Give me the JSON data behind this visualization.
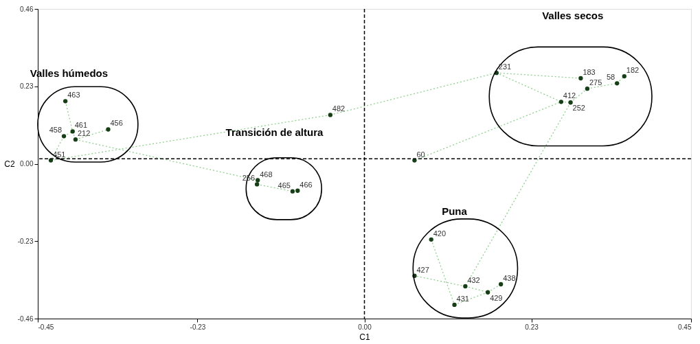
{
  "chart_data": {
    "type": "scatter",
    "xlabel": "C1",
    "ylabel": "C2",
    "xlim": [
      -0.45,
      0.45
    ],
    "ylim": [
      -0.46,
      0.46
    ],
    "xticks": [
      {
        "value": -0.45,
        "label": "-0.45"
      },
      {
        "value": -0.23,
        "label": "-0.23"
      },
      {
        "value": 0,
        "label": "0.00"
      },
      {
        "value": 0.23,
        "label": "0.23"
      },
      {
        "value": 0.45,
        "label": "0.45"
      }
    ],
    "yticks": [
      {
        "value": -0.46,
        "label": "-0.46"
      },
      {
        "value": -0.23,
        "label": "-0.23"
      },
      {
        "value": 0,
        "label": "0.00"
      },
      {
        "value": 0.23,
        "label": "0.23"
      },
      {
        "value": 0.46,
        "label": "0.46"
      }
    ],
    "grid": false,
    "ref_lines": [
      {
        "axis": "x",
        "value": 0,
        "label": null,
        "line_style": "dashed",
        "color": "#000000"
      },
      {
        "axis": "y",
        "value": 0.015,
        "label": null,
        "line_style": "dashed",
        "color": "#000000"
      }
    ],
    "annotations": [
      "Valles húmedos",
      "Transición de altura",
      "Valles secos",
      "Puna",
      {
        "text": "463",
        "x": -0.412,
        "y": 0.186
      },
      {
        "text": "458",
        "x": -0.414,
        "y": 0.082
      },
      {
        "text": "461",
        "x": -0.402,
        "y": 0.096
      },
      {
        "text": "212",
        "x": -0.398,
        "y": 0.072
      },
      {
        "text": "456",
        "x": -0.353,
        "y": 0.102
      },
      {
        "text": "451",
        "x": -0.432,
        "y": 0.01
      },
      {
        "text": "468",
        "x": -0.147,
        "y": -0.049
      },
      {
        "text": "256",
        "x": -0.148,
        "y": -0.061
      },
      {
        "text": "465",
        "x": -0.099,
        "y": -0.082
      },
      {
        "text": "466",
        "x": -0.092,
        "y": -0.08
      },
      {
        "text": "482",
        "x": -0.047,
        "y": 0.145
      },
      {
        "text": "60",
        "x": 0.069,
        "y": 0.01
      },
      {
        "text": "231",
        "x": 0.182,
        "y": 0.27
      },
      {
        "text": "183",
        "x": 0.298,
        "y": 0.254
      },
      {
        "text": "275",
        "x": 0.307,
        "y": 0.223
      },
      {
        "text": "412",
        "x": 0.271,
        "y": 0.184
      },
      {
        "text": "252",
        "x": 0.284,
        "y": 0.182
      },
      {
        "text": "58",
        "x": 0.348,
        "y": 0.239
      },
      {
        "text": "182",
        "x": 0.358,
        "y": 0.26
      },
      {
        "text": "420",
        "x": 0.092,
        "y": -0.225
      },
      {
        "text": "427",
        "x": 0.069,
        "y": -0.333
      },
      {
        "text": "432",
        "x": 0.139,
        "y": -0.364
      },
      {
        "text": "429",
        "x": 0.17,
        "y": -0.382
      },
      {
        "text": "438",
        "x": 0.188,
        "y": -0.358
      },
      {
        "text": "431",
        "x": 0.124,
        "y": -0.419
      }
    ],
    "series": [
      {
        "type": "line",
        "line_style": "dotted",
        "marker": "none",
        "color": "#8fcf8f",
        "x": [
          -0.412,
          -0.402,
          null,
          -0.414,
          -0.402,
          null,
          -0.402,
          -0.398,
          null,
          -0.398,
          -0.353,
          null,
          -0.414,
          -0.432,
          null,
          -0.398,
          -0.147,
          null,
          -0.147,
          -0.148,
          null,
          -0.148,
          -0.099,
          null,
          -0.099,
          -0.092,
          null,
          -0.432,
          -0.047,
          null,
          -0.047,
          0.182,
          null,
          0.182,
          0.298,
          null,
          0.182,
          0.271,
          null,
          0.271,
          0.284,
          null,
          0.284,
          0.307,
          null,
          0.307,
          0.348,
          null,
          0.348,
          0.358,
          null,
          0.069,
          0.271,
          null,
          0.284,
          0.139,
          null,
          0.139,
          0.069,
          null,
          0.139,
          0.17,
          null,
          0.17,
          0.188,
          null,
          0.092,
          0.124,
          null,
          0.124,
          0.17
        ],
        "values": [
          0.186,
          0.096,
          null,
          0.082,
          0.096,
          null,
          0.096,
          0.072,
          null,
          0.072,
          0.102,
          null,
          0.082,
          0.01,
          null,
          0.072,
          -0.049,
          null,
          -0.049,
          -0.061,
          null,
          -0.061,
          -0.082,
          null,
          -0.082,
          -0.08,
          null,
          0.01,
          0.145,
          null,
          0.145,
          0.27,
          null,
          0.27,
          0.254,
          null,
          0.27,
          0.184,
          null,
          0.184,
          0.182,
          null,
          0.182,
          0.223,
          null,
          0.223,
          0.239,
          null,
          0.239,
          0.26,
          null,
          0.01,
          0.184,
          null,
          0.182,
          -0.364,
          null,
          -0.364,
          -0.333,
          null,
          -0.364,
          -0.382,
          null,
          -0.382,
          -0.358,
          null,
          -0.225,
          -0.419,
          null,
          -0.419,
          -0.382
        ]
      },
      {
        "marker": "circle",
        "color": "#173f17",
        "x": [
          -0.412,
          -0.414,
          -0.402,
          -0.398,
          -0.353,
          -0.432,
          -0.147,
          -0.148,
          -0.099,
          -0.092,
          -0.047,
          0.069,
          0.182,
          0.298,
          0.307,
          0.271,
          0.284,
          0.348,
          0.358,
          0.092,
          0.069,
          0.139,
          0.17,
          0.188,
          0.124
        ],
        "values": [
          0.186,
          0.082,
          0.096,
          0.072,
          0.102,
          0.01,
          -0.049,
          -0.061,
          -0.082,
          -0.08,
          0.145,
          0.01,
          0.27,
          0.254,
          0.223,
          0.184,
          0.182,
          0.239,
          0.26,
          -0.225,
          -0.333,
          -0.364,
          -0.382,
          -0.358,
          -0.419
        ]
      }
    ]
  }
}
